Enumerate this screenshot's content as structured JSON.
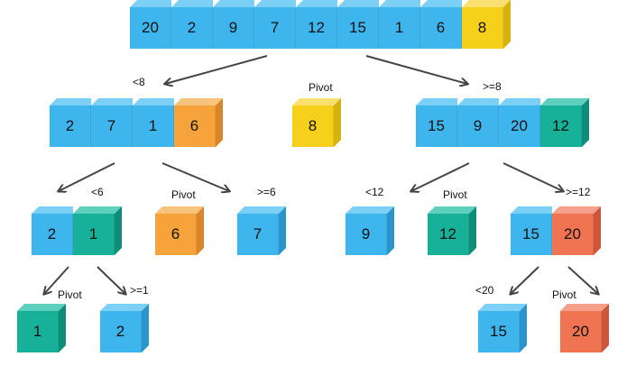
{
  "colors": {
    "blue": "#3fb5ee",
    "blue_top": "#7ccff5",
    "blue_side": "#2a95cc",
    "yellow": "#f7d01c",
    "yellow_top": "#f9e070",
    "yellow_side": "#d6b20e",
    "orange": "#f6a33c",
    "orange_top": "#f8c37b",
    "orange_side": "#d9862a",
    "teal": "#16b198",
    "teal_top": "#5fd0bd",
    "teal_side": "#0e8e78",
    "coral": "#f07352",
    "coral_top": "#f4a08a",
    "coral_side": "#cc5639"
  },
  "arrays": [
    {
      "id": "root",
      "cells": [
        {
          "v": "20",
          "c": "blue"
        },
        {
          "v": "2",
          "c": "blue"
        },
        {
          "v": "9",
          "c": "blue"
        },
        {
          "v": "7",
          "c": "blue"
        },
        {
          "v": "12",
          "c": "blue"
        },
        {
          "v": "15",
          "c": "blue"
        },
        {
          "v": "1",
          "c": "blue"
        },
        {
          "v": "6",
          "c": "blue"
        },
        {
          "v": "8",
          "c": "yellow"
        }
      ]
    },
    {
      "id": "left-1",
      "cells": [
        {
          "v": "2",
          "c": "blue"
        },
        {
          "v": "7",
          "c": "blue"
        },
        {
          "v": "1",
          "c": "blue"
        },
        {
          "v": "6",
          "c": "orange"
        }
      ]
    },
    {
      "id": "pivot-8",
      "cells": [
        {
          "v": "8",
          "c": "yellow"
        }
      ]
    },
    {
      "id": "right-1",
      "cells": [
        {
          "v": "15",
          "c": "blue"
        },
        {
          "v": "9",
          "c": "blue"
        },
        {
          "v": "20",
          "c": "blue"
        },
        {
          "v": "12",
          "c": "teal"
        }
      ]
    },
    {
      "id": "left-2",
      "cells": [
        {
          "v": "2",
          "c": "blue"
        },
        {
          "v": "1",
          "c": "teal"
        }
      ]
    },
    {
      "id": "pivot-6",
      "cells": [
        {
          "v": "6",
          "c": "orange"
        }
      ]
    },
    {
      "id": "right-7",
      "cells": [
        {
          "v": "7",
          "c": "blue"
        }
      ]
    },
    {
      "id": "left-9",
      "cells": [
        {
          "v": "9",
          "c": "blue"
        }
      ]
    },
    {
      "id": "pivot-12",
      "cells": [
        {
          "v": "12",
          "c": "teal"
        }
      ]
    },
    {
      "id": "right-2",
      "cells": [
        {
          "v": "15",
          "c": "blue"
        },
        {
          "v": "20",
          "c": "coral"
        }
      ]
    },
    {
      "id": "pivot-1",
      "cells": [
        {
          "v": "1",
          "c": "teal"
        }
      ]
    },
    {
      "id": "right-2b",
      "cells": [
        {
          "v": "2",
          "c": "blue"
        }
      ]
    },
    {
      "id": "left-15",
      "cells": [
        {
          "v": "15",
          "c": "blue"
        }
      ]
    },
    {
      "id": "pivot-20",
      "cells": [
        {
          "v": "20",
          "c": "coral"
        }
      ]
    }
  ],
  "labels": [
    {
      "id": "lt8",
      "text": "<8"
    },
    {
      "id": "pivot-a",
      "text": "Pivot"
    },
    {
      "id": "ge8",
      "text": ">=8"
    },
    {
      "id": "lt6",
      "text": "<6"
    },
    {
      "id": "pivot-b",
      "text": "Pivot"
    },
    {
      "id": "ge6",
      "text": ">=6"
    },
    {
      "id": "lt12",
      "text": "<12"
    },
    {
      "id": "pivot-c",
      "text": "Pivot"
    },
    {
      "id": "ge12",
      "text": ">=12"
    },
    {
      "id": "pivot-d",
      "text": "Pivot"
    },
    {
      "id": "ge1",
      "text": ">=1"
    },
    {
      "id": "lt20",
      "text": "<20"
    },
    {
      "id": "pivot-e",
      "text": "Pivot"
    }
  ]
}
